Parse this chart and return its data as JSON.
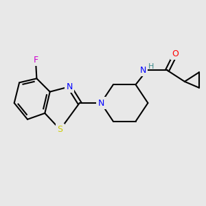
{
  "background_color": "#e8e8e8",
  "bond_color": "#000000",
  "bond_width": 1.5,
  "atom_colors": {
    "F": "#cc00cc",
    "N": "#0000ff",
    "O": "#ff0000",
    "S": "#cccc00",
    "H": "#3a8a8a",
    "C": "#000000"
  },
  "font_size": 9,
  "figsize": [
    3.0,
    3.0
  ],
  "dpi": 100
}
